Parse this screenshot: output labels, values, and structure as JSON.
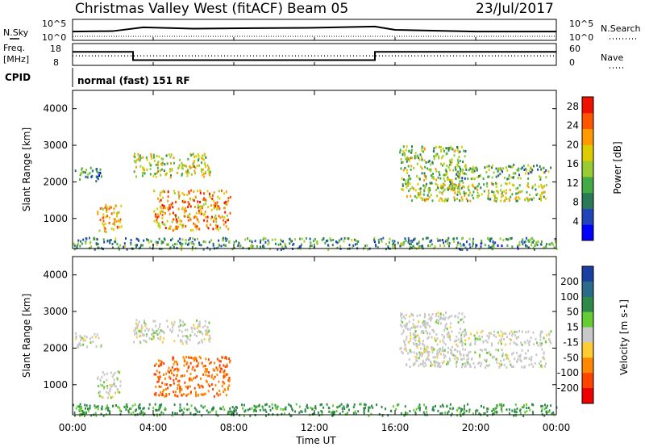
{
  "header": {
    "title": "Christmas Valley West (fitACF)",
    "beam": "Beam 05",
    "date": "23/Jul/2017"
  },
  "noise_panel": {
    "left_label": "N.Sky",
    "right_label": "N.Search",
    "left_ticks": [
      "10^5",
      "10^0"
    ],
    "right_ticks": [
      "10^5",
      "10^0"
    ],
    "sky_level_series": [
      {
        "t": 0,
        "v": 0.42
      },
      {
        "t": 2,
        "v": 0.44
      },
      {
        "t": 3.5,
        "v": 0.62
      },
      {
        "t": 6,
        "v": 0.56
      },
      {
        "t": 9,
        "v": 0.58
      },
      {
        "t": 12,
        "v": 0.6
      },
      {
        "t": 15,
        "v": 0.66
      },
      {
        "t": 16,
        "v": 0.5
      },
      {
        "t": 20,
        "v": 0.42
      },
      {
        "t": 24,
        "v": 0.42
      }
    ]
  },
  "freq_panel": {
    "left_label_1": "Freq.",
    "left_label_2": "[MHz]",
    "right_label": "Nave",
    "left_ticks": [
      "18",
      "8"
    ],
    "right_ticks": [
      "60",
      "0"
    ],
    "freq_steps": [
      {
        "t0": 0,
        "t1": 3,
        "freq": 14.2
      },
      {
        "t0": 3,
        "t1": 15,
        "freq": 10.4
      },
      {
        "t0": 15,
        "t1": 24,
        "freq": 14.2
      }
    ],
    "nave_level": 26
  },
  "cpid": {
    "label": "CPID",
    "text": "normal (fast) 151 RF"
  },
  "power_panel": {
    "ylabel": "Slant Range [km]",
    "yticks": [
      "1000",
      "2000",
      "3000",
      "4000"
    ],
    "ytick_values": [
      1000,
      2000,
      3000,
      4000
    ],
    "ylim": [
      180,
      4500
    ],
    "colorbar_label": "Power [dB]",
    "colorbar_ticks": [
      "4",
      "8",
      "12",
      "16",
      "20",
      "24",
      "28"
    ],
    "colorbar_range": [
      0,
      30
    ],
    "colors": [
      "#0000ff",
      "#2244bb",
      "#2a7a5a",
      "#44aa44",
      "#99cc33",
      "#ddcc00",
      "#ff9900",
      "#ff5500",
      "#ee1100"
    ]
  },
  "velocity_panel": {
    "ylabel": "Slant Range [km]",
    "yticks": [
      "1000",
      "2000",
      "3000",
      "4000"
    ],
    "ytick_values": [
      1000,
      2000,
      3000,
      4000
    ],
    "ylim": [
      180,
      4500
    ],
    "colorbar_label": "Velocity [m s-1]",
    "colorbar_ticks": [
      "200",
      "100",
      "50",
      "15",
      "-15",
      "-50",
      "-100",
      "-200"
    ],
    "colors": [
      "#1a3fa0",
      "#2a6a8a",
      "#2e8a4a",
      "#66cc33",
      "#c8c8c8",
      "#ffcc33",
      "#ff8800",
      "#ff4400",
      "#ee0000"
    ]
  },
  "x_axis": {
    "xlabel": "Time UT",
    "ticks": [
      "00:00",
      "04:00",
      "08:00",
      "12:00",
      "16:00",
      "20:00",
      "00:00"
    ],
    "tick_hours": [
      0,
      4,
      8,
      12,
      16,
      20,
      24
    ]
  },
  "chart_data": {
    "type": "heatmap",
    "title": "Christmas Valley West (fitACF)",
    "subtitle": "Beam 05",
    "date": "23/Jul/2017",
    "x_unit": "hours UT",
    "xlim": [
      0,
      24
    ],
    "ylabel": "Slant Range [km]",
    "ylim": [
      180,
      4500
    ],
    "echo_regions": [
      {
        "t0": 0.1,
        "t1": 1.4,
        "r0": 2050,
        "r1": 2450,
        "power": 10,
        "velocity": 0
      },
      {
        "t0": 1.2,
        "t1": 2.4,
        "r0": 650,
        "r1": 1400,
        "power": 20,
        "velocity": 0
      },
      {
        "t0": 3.0,
        "t1": 6.8,
        "r0": 2150,
        "r1": 2800,
        "power": 16,
        "velocity": 0
      },
      {
        "t0": 4.0,
        "t1": 7.8,
        "r0": 700,
        "r1": 1800,
        "power": 22,
        "velocity": -70
      },
      {
        "t0": 16.2,
        "t1": 19.5,
        "r0": 1800,
        "r1": 3000,
        "power": 14,
        "velocity": 0
      },
      {
        "t0": 16.5,
        "t1": 23.5,
        "r0": 1500,
        "r1": 2000,
        "power": 16,
        "velocity": 0
      },
      {
        "t0": 19.0,
        "t1": 23.7,
        "r0": 2100,
        "r1": 2500,
        "power": 12,
        "velocity": 0
      },
      {
        "t0": 0.0,
        "t1": 24.0,
        "r0": 180,
        "r1": 500,
        "power": 10,
        "velocity": 40
      }
    ]
  }
}
